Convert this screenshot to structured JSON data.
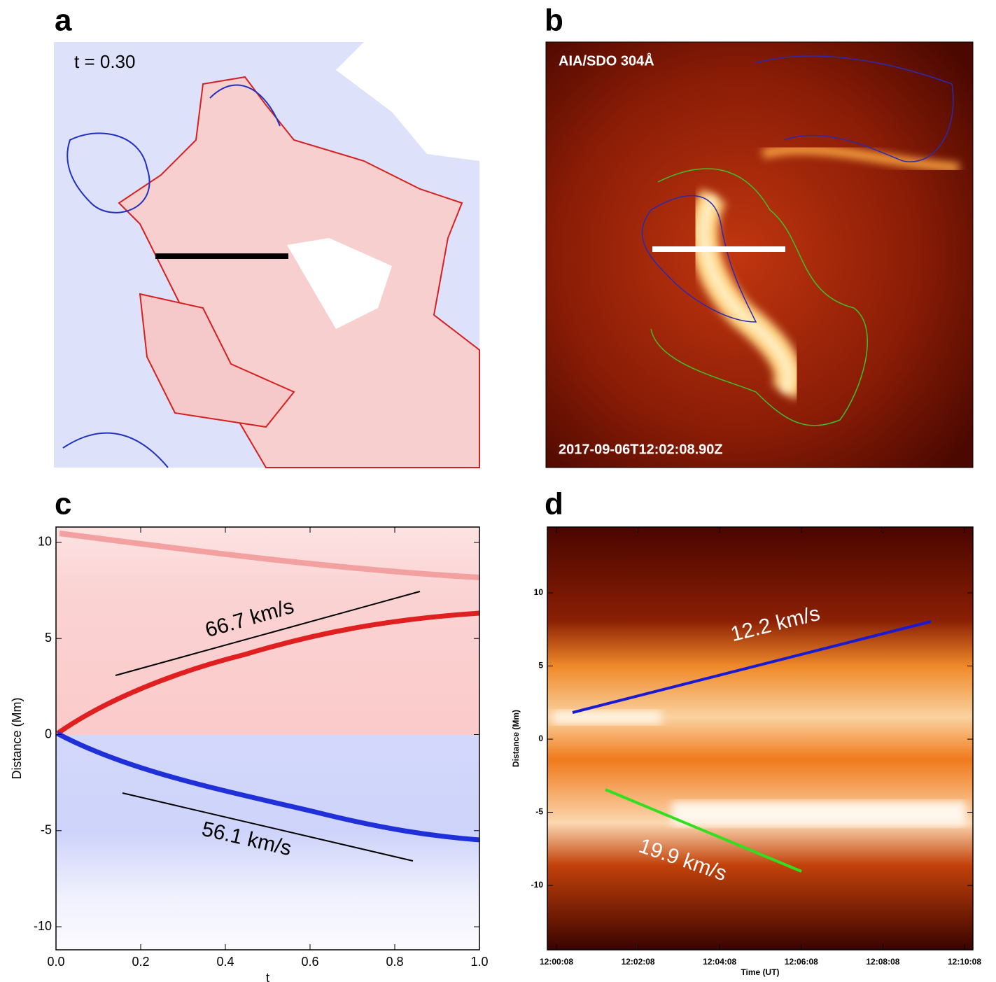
{
  "panels": {
    "a": {
      "label": "a",
      "annotation": "t = 0.30"
    },
    "b": {
      "label": "b",
      "instrument": "AIA/SDO 304Å",
      "timestamp": "2017-09-06T12:02:08.90Z"
    }
  },
  "chart_data": [
    {
      "type": "heatmap",
      "panel_label": "c",
      "xlabel": "t",
      "ylabel": "Distance (Mm)",
      "xlim": [
        0,
        1
      ],
      "ylim": [
        -11.2,
        10.8
      ],
      "xticks": [
        {
          "value": 0,
          "label": "0.0"
        },
        {
          "value": 0.2,
          "label": "0.2"
        },
        {
          "value": 0.4,
          "label": "0.4"
        },
        {
          "value": 0.6,
          "label": "0.6"
        },
        {
          "value": 0.8,
          "label": "0.8"
        },
        {
          "value": 1,
          "label": "1.0"
        }
      ],
      "yticks": [
        -10,
        -5,
        0,
        5,
        10
      ],
      "annotations": [
        "66.7 km/s",
        "56.1 km/s"
      ]
    },
    {
      "type": "heatmap",
      "panel_label": "d",
      "xlabel": "Time (UT)",
      "ylabel": "Distance (Mm)",
      "xlim": [
        "12:00:08",
        "12:10:08"
      ],
      "ylim": [
        -14.4,
        14.5
      ],
      "xticks": [
        "12:00:08",
        "12:02:08",
        "12:04:08",
        "12:06:08",
        "12:08:08",
        "12:10:08"
      ],
      "yticks": [
        -10,
        -5,
        0,
        5,
        10
      ],
      "annotations": [
        "12.2 km/s",
        "19.9 km/s"
      ]
    }
  ]
}
